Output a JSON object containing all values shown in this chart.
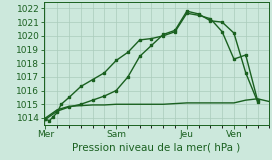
{
  "xlabel": "Pression niveau de la mer( hPa )",
  "bg_color": "#cce8dc",
  "grid_color": "#aaccbb",
  "line_color": "#1a6020",
  "ylim": [
    1013.5,
    1022.5
  ],
  "yticks": [
    1014,
    1015,
    1016,
    1017,
    1018,
    1019,
    1020,
    1021,
    1022
  ],
  "day_labels": [
    "Mer",
    "Sam",
    "Jeu",
    "Ven"
  ],
  "day_positions": [
    0,
    36,
    72,
    96
  ],
  "xlim": [
    -1,
    114
  ],
  "series1_x": [
    0,
    2,
    4,
    6,
    8,
    12,
    18,
    24,
    30,
    36,
    42,
    48,
    54,
    60,
    66,
    72,
    78,
    84,
    90,
    96,
    102,
    108
  ],
  "series1_y": [
    1013.9,
    1013.8,
    1014.1,
    1014.4,
    1015.0,
    1015.5,
    1016.3,
    1016.8,
    1017.3,
    1018.2,
    1018.8,
    1019.7,
    1019.8,
    1020.0,
    1020.3,
    1021.65,
    1021.5,
    1021.25,
    1020.3,
    1018.3,
    1018.6,
    1015.3
  ],
  "series2_x": [
    0,
    6,
    12,
    18,
    24,
    30,
    36,
    42,
    48,
    54,
    60,
    66,
    72,
    78,
    84,
    90,
    96,
    102,
    108
  ],
  "series2_y": [
    1013.9,
    1014.5,
    1014.8,
    1015.0,
    1015.3,
    1015.6,
    1016.0,
    1017.0,
    1018.5,
    1019.3,
    1020.1,
    1020.4,
    1021.8,
    1021.6,
    1021.1,
    1021.0,
    1020.2,
    1017.3,
    1015.2
  ],
  "series3_x": [
    0,
    6,
    12,
    18,
    24,
    30,
    36,
    42,
    48,
    54,
    60,
    66,
    72,
    78,
    84,
    90,
    96,
    102,
    108,
    114
  ],
  "series3_y": [
    1014.0,
    1014.6,
    1014.85,
    1014.9,
    1014.95,
    1014.95,
    1015.0,
    1015.0,
    1015.0,
    1015.0,
    1015.0,
    1015.05,
    1015.1,
    1015.1,
    1015.1,
    1015.1,
    1015.1,
    1015.3,
    1015.4,
    1015.2
  ],
  "marker_size": 2.0,
  "line_width": 1.0,
  "xlabel_fontsize": 7.5,
  "tick_fontsize": 6.5
}
